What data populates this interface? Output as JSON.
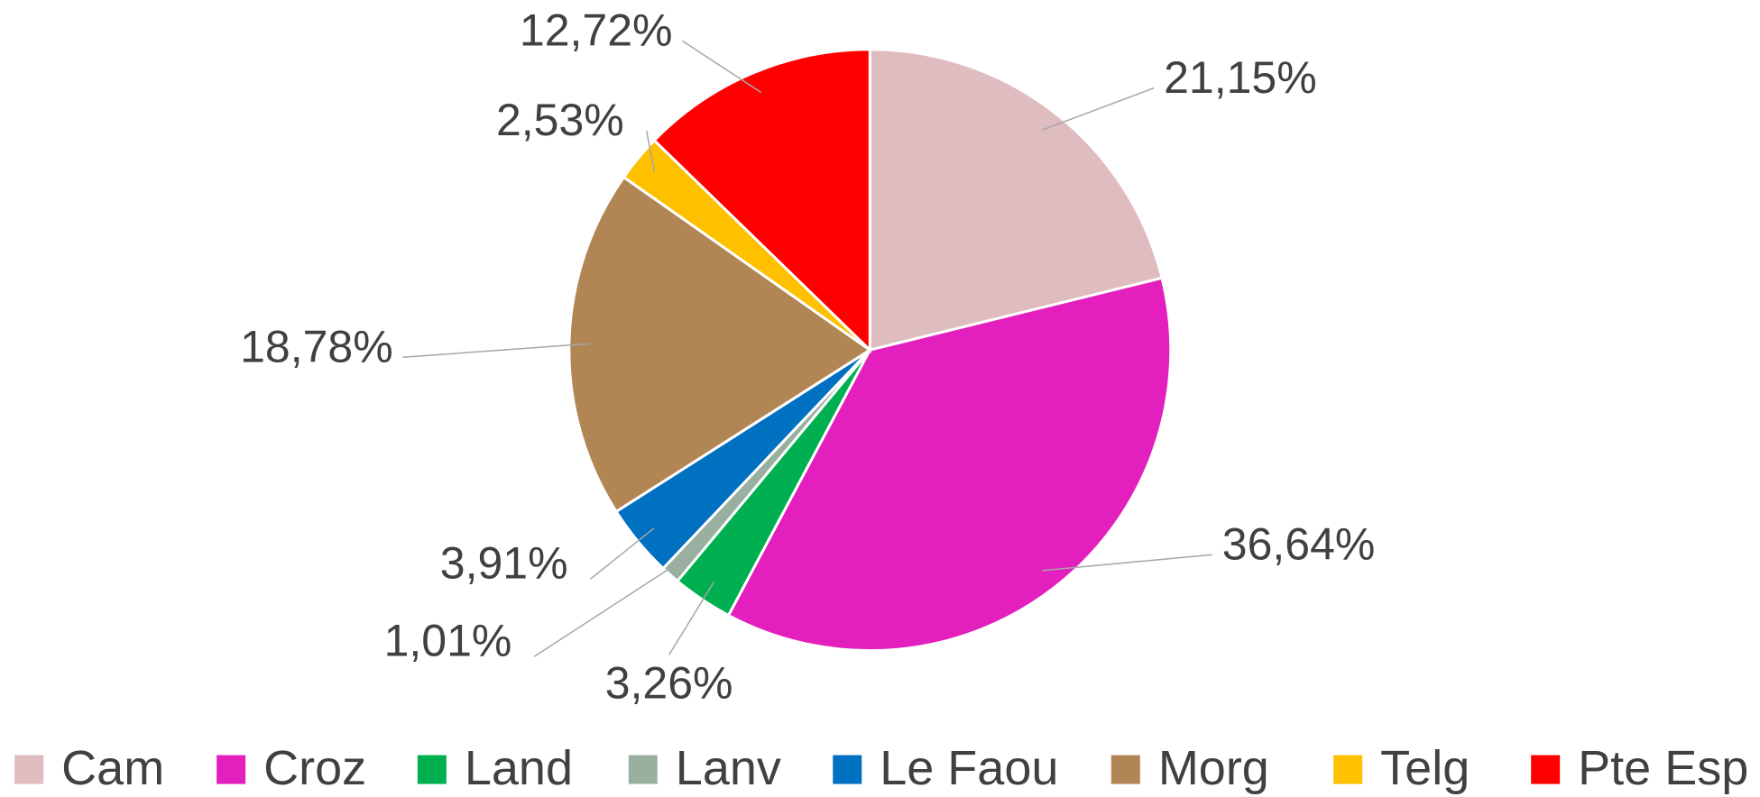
{
  "chart_data": {
    "type": "pie",
    "categories": [
      "Cam",
      "Croz",
      "Land",
      "Lanv",
      "Le Faou",
      "Morg",
      "Telg",
      "Pte Esp"
    ],
    "values": [
      21.15,
      36.64,
      3.26,
      1.01,
      3.91,
      18.78,
      2.53,
      12.72
    ],
    "value_labels": [
      "21,15%",
      "36,64%",
      "3,26%",
      "1,01%",
      "3,91%",
      "18,78%",
      "2,53%",
      "12,72%"
    ],
    "colors": [
      "#dfbcbf",
      "#e31fbd",
      "#00b050",
      "#99b0a0",
      "#0070c0",
      "#b28555",
      "#ffc000",
      "#ff0000"
    ],
    "legend": "bottom"
  }
}
